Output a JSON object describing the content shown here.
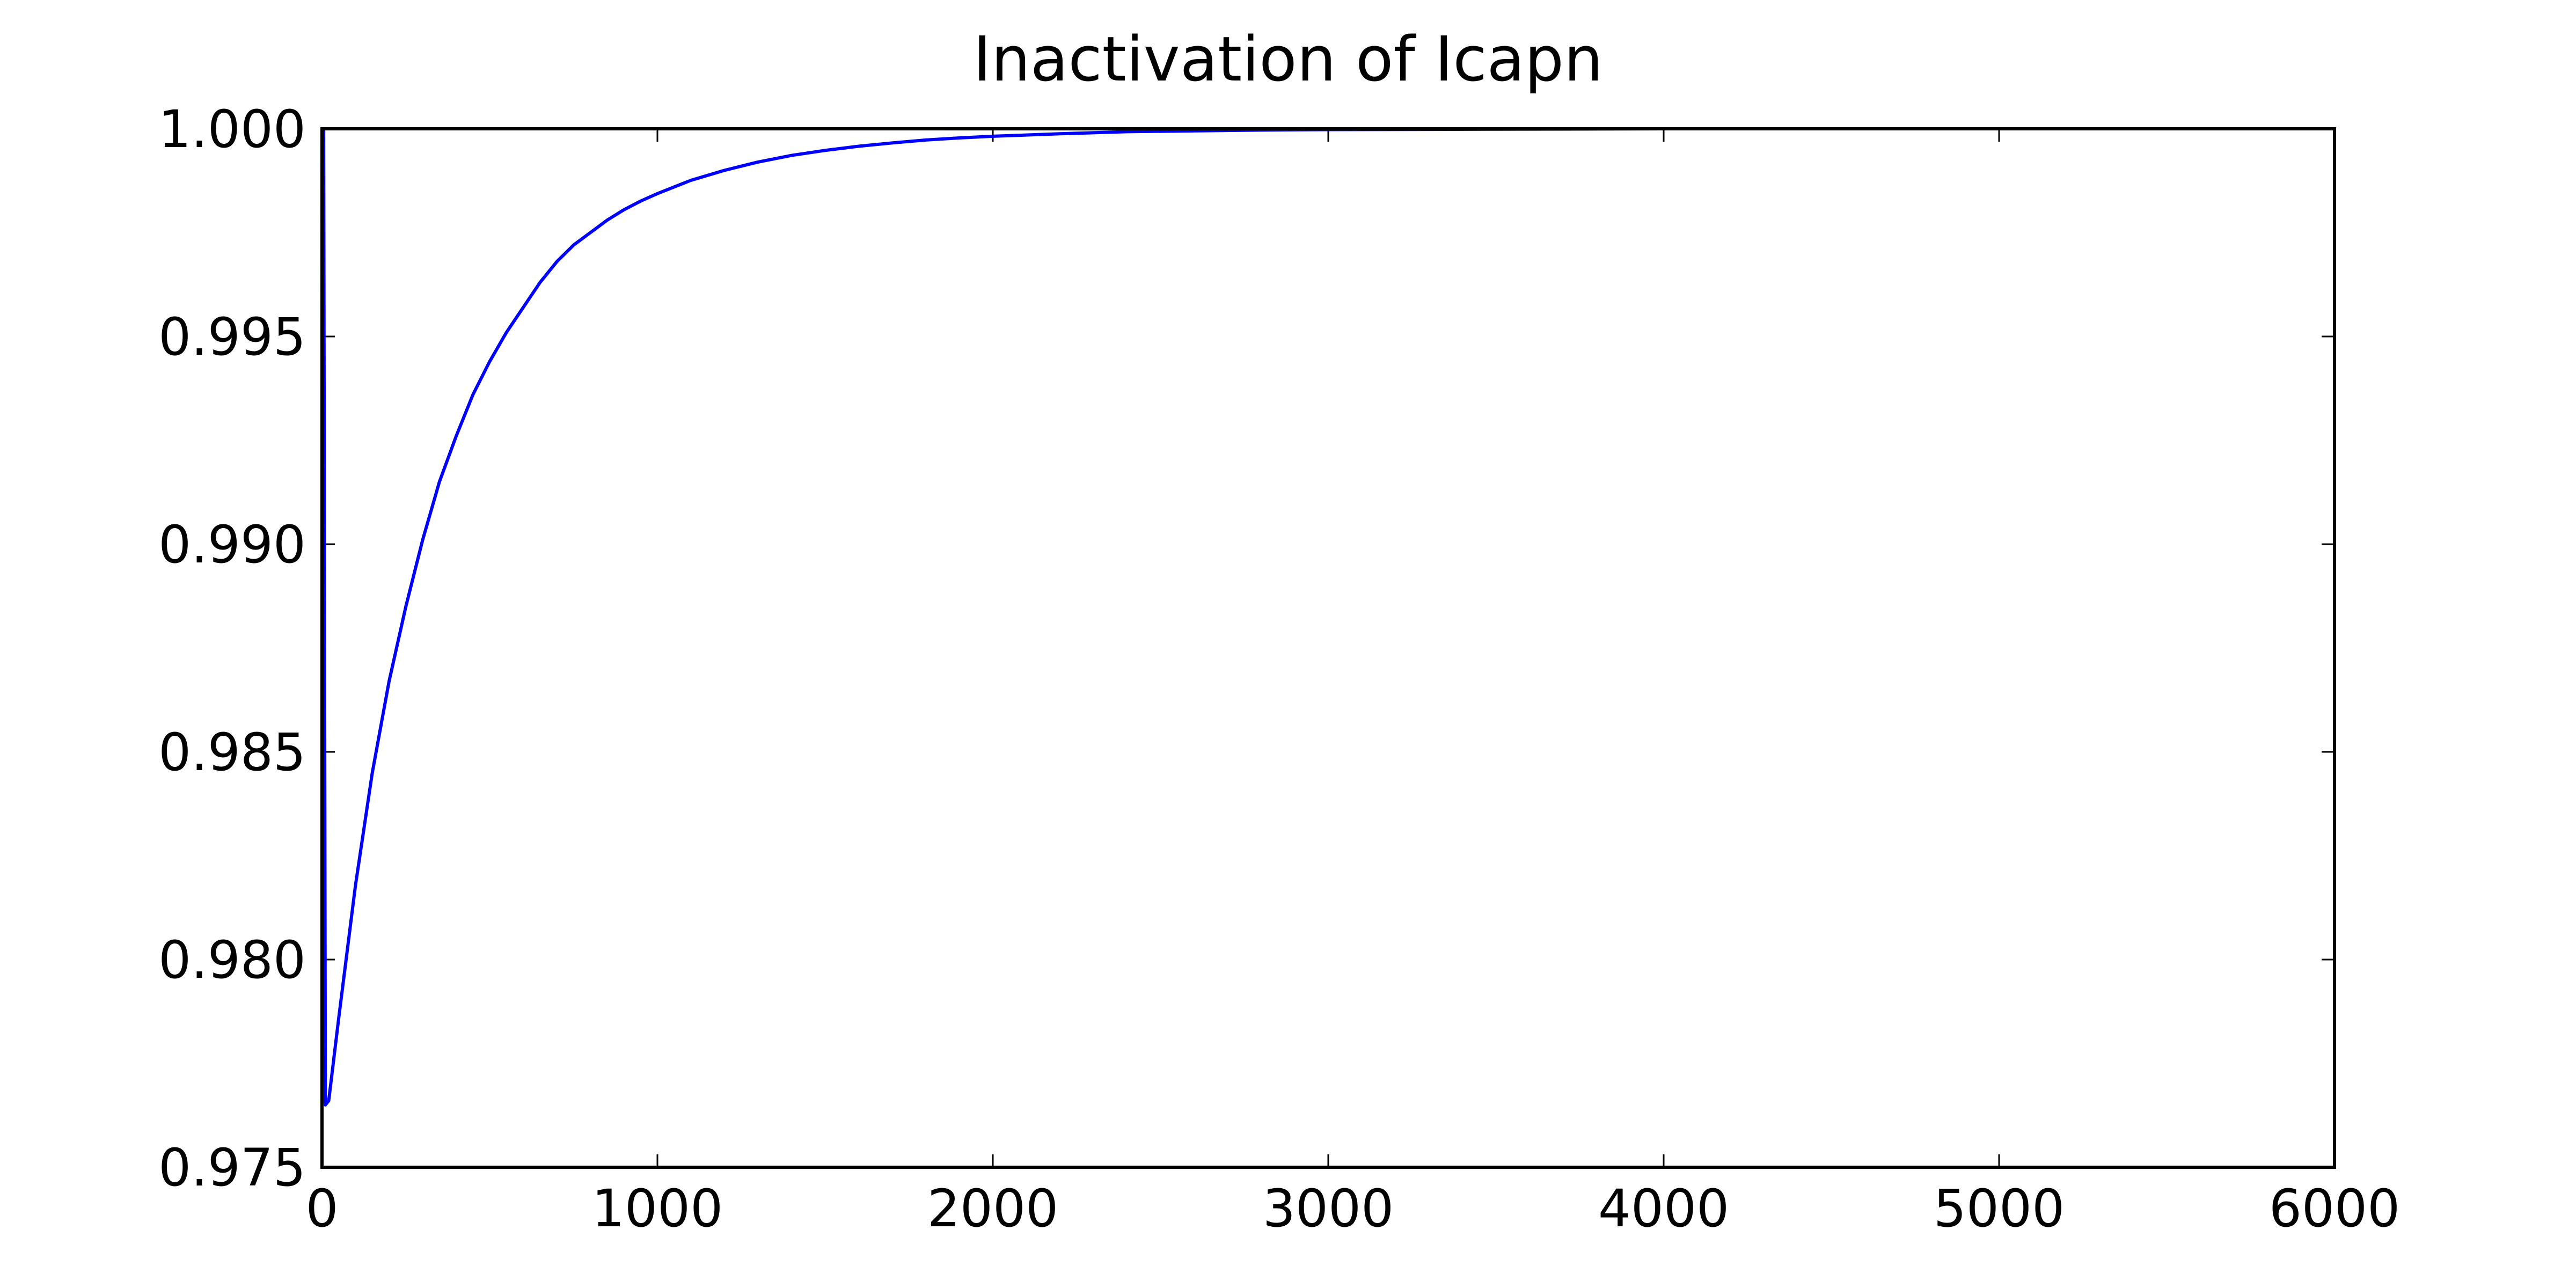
{
  "chart_data": {
    "type": "line",
    "title": "Inactivation of Icapn",
    "xlabel": "",
    "ylabel": "",
    "xlim": [
      0,
      6000
    ],
    "ylim": [
      0.975,
      1.0
    ],
    "x_ticks": [
      0,
      1000,
      2000,
      3000,
      4000,
      5000,
      6000
    ],
    "x_tick_labels": [
      "0",
      "1000",
      "2000",
      "3000",
      "4000",
      "5000",
      "6000"
    ],
    "y_ticks": [
      0.975,
      0.98,
      0.985,
      0.99,
      0.995,
      1.0
    ],
    "y_tick_labels": [
      "0.975",
      "0.980",
      "0.985",
      "0.990",
      "0.995",
      "1.000"
    ],
    "grid": false,
    "legend": "none",
    "series": [
      {
        "color": "#0000ff",
        "x": [
          0,
          5,
          10,
          20,
          50,
          100,
          150,
          200,
          250,
          300,
          350,
          400,
          450,
          500,
          550,
          600,
          650,
          700,
          750,
          800,
          850,
          900,
          950,
          1000,
          1100,
          1200,
          1300,
          1400,
          1500,
          1600,
          1700,
          1800,
          1900,
          2000,
          2200,
          2400,
          2600,
          2800,
          3000,
          3500,
          4000,
          4500,
          5000,
          5500,
          6000
        ],
        "values": [
          1.0,
          1.0,
          0.9765,
          0.9766,
          0.9786,
          0.9818,
          0.9845,
          0.9867,
          0.9885,
          0.9901,
          0.9915,
          0.9926,
          0.9936,
          0.9944,
          0.9951,
          0.9957,
          0.9963,
          0.9968,
          0.9972,
          0.9975,
          0.9978,
          0.99805,
          0.99826,
          0.99844,
          0.99876,
          0.999,
          0.9992,
          0.99936,
          0.99948,
          0.99958,
          0.99966,
          0.99973,
          0.99978,
          0.99982,
          0.99988,
          0.99993,
          0.99995,
          0.99997,
          0.99998,
          0.99999,
          1.0,
          1.0,
          1.0,
          1.0,
          1.0
        ]
      }
    ]
  }
}
